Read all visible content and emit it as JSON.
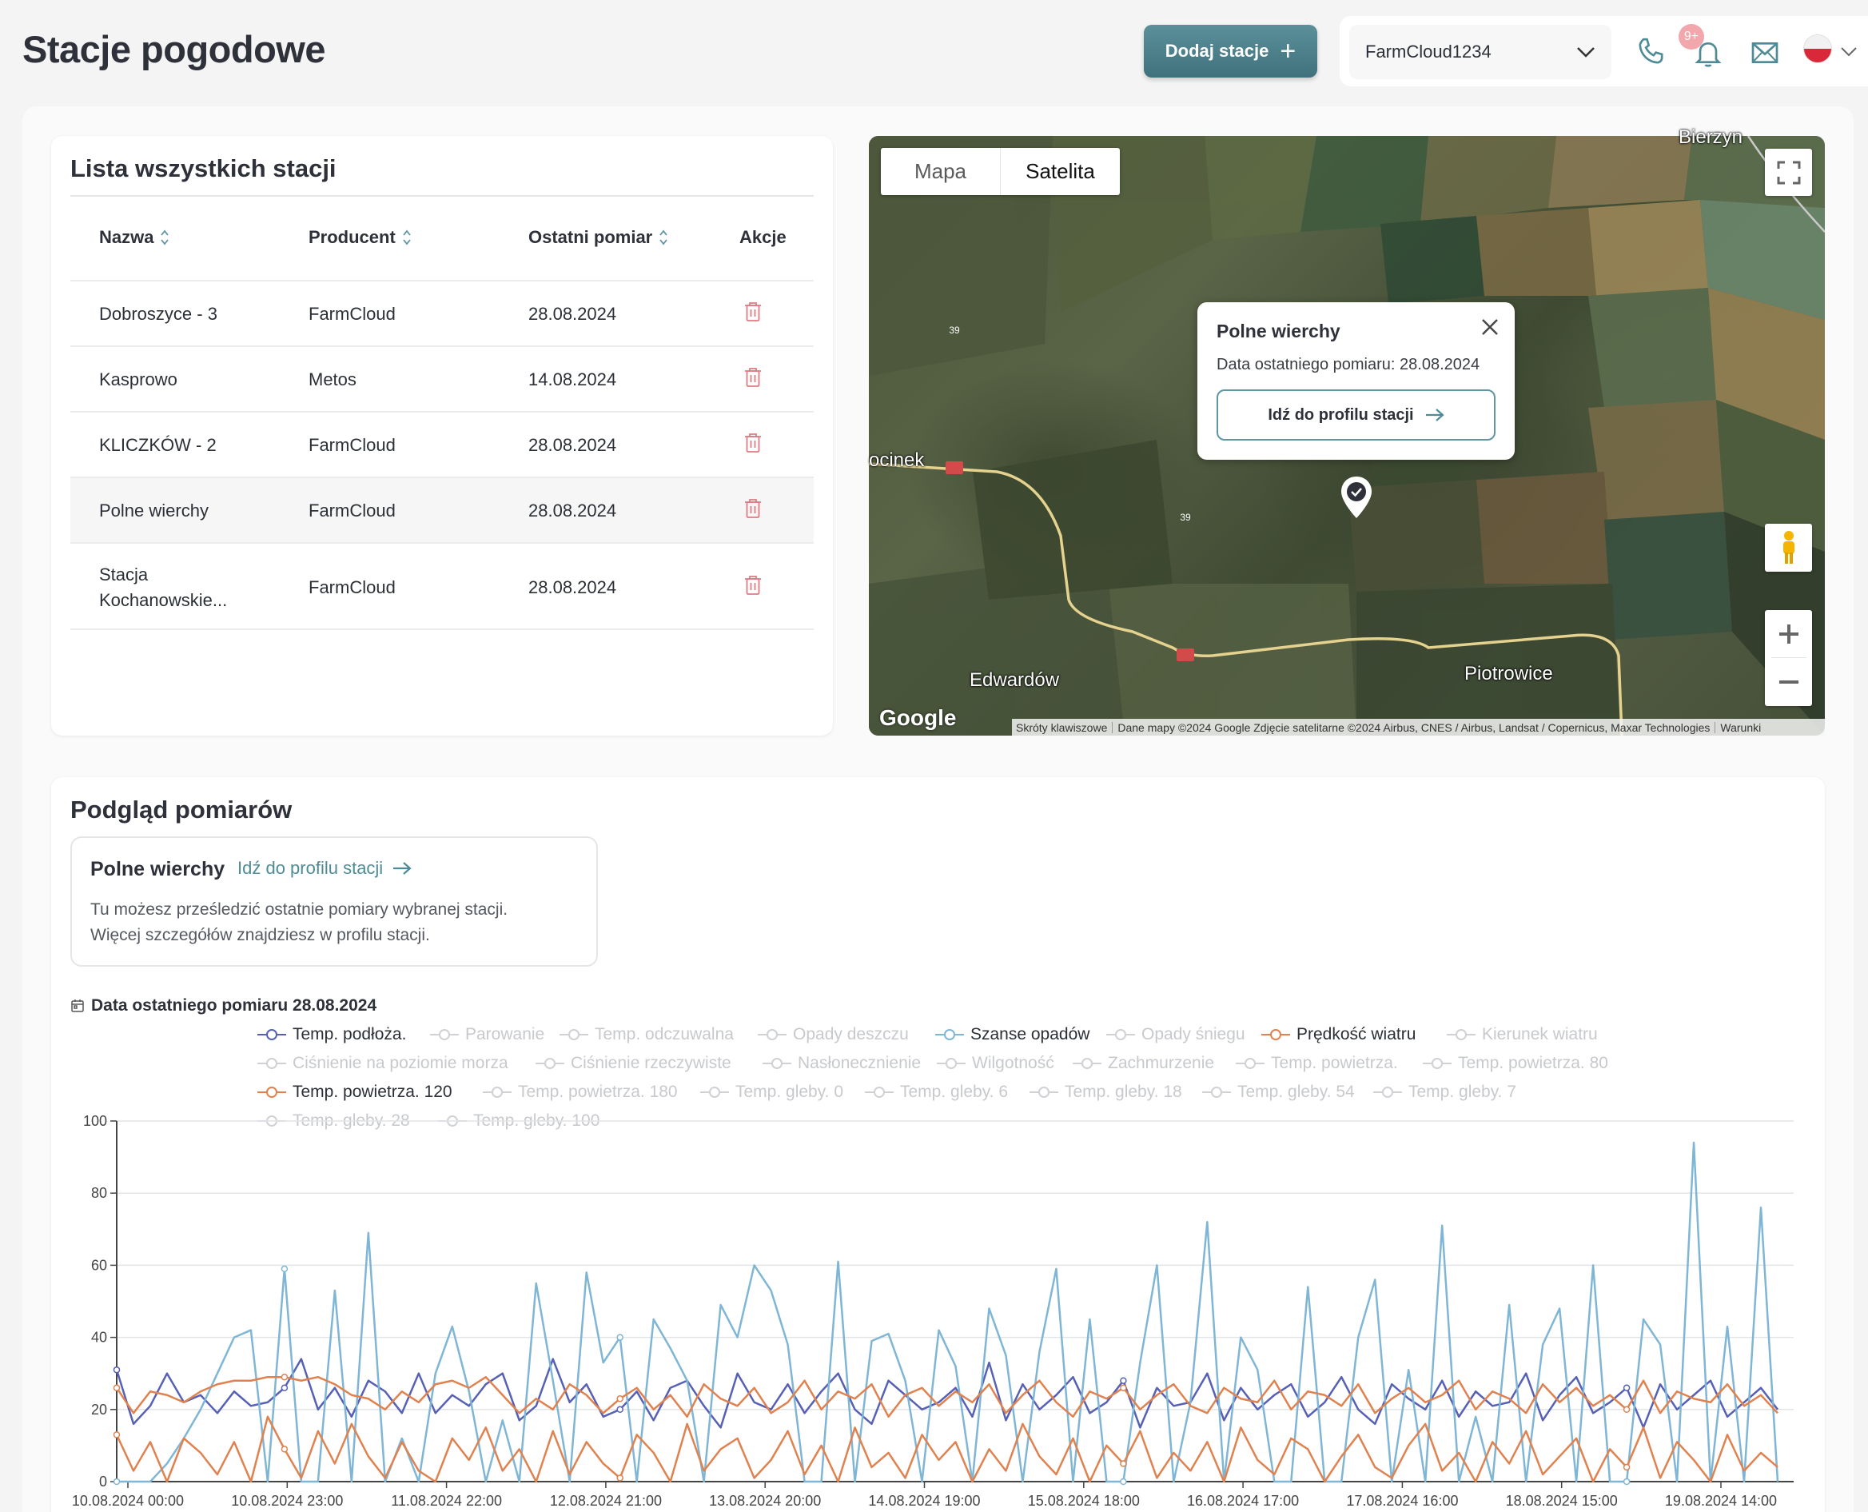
{
  "header": {
    "title": "Stacje pogodowe",
    "add_button": "Dodaj stacje",
    "account": "FarmCloud1234",
    "notifications_badge": "9+",
    "icons": [
      "phone-icon",
      "bell-icon",
      "mail-icon",
      "flag-pl-icon"
    ]
  },
  "stations": {
    "title": "Lista wszystkich stacji",
    "columns": [
      "Nazwa",
      "Producent",
      "Ostatni pomiar",
      "Akcje"
    ],
    "rows": [
      {
        "name": "Dobroszyce - 3",
        "producer": "FarmCloud",
        "last": "28.08.2024"
      },
      {
        "name": "Kasprowo",
        "producer": "Metos",
        "last": "14.08.2024"
      },
      {
        "name": "KLICZKÓW - 2",
        "producer": "FarmCloud",
        "last": "28.08.2024"
      },
      {
        "name": "Polne wierchy",
        "producer": "FarmCloud",
        "last": "28.08.2024"
      },
      {
        "name": "Stacja Kochanowskie...",
        "name_line1": "Stacja",
        "name_line2": "Kochanowskie...",
        "producer": "FarmCloud",
        "last": "28.08.2024"
      }
    ]
  },
  "map": {
    "tab_map": "Mapa",
    "tab_satellite": "Satelita",
    "active_tab": "Satelita",
    "popup": {
      "title": "Polne wierchy",
      "subtitle": "Data ostatniego pomiaru: 28.08.2024",
      "button": "Idź do profilu stacji"
    },
    "labels": {
      "top_right": "Bierzyn",
      "left": "ocinek",
      "bottom_left": "Edwardów",
      "bottom_right": "Piotrowice",
      "road": "39"
    },
    "google": "Google",
    "attribution": {
      "shortcuts": "Skróty klawiszowe",
      "data": "Dane mapy ©2024 Google Zdjęcie satelitarne ©2024 Airbus, CNES / Airbus, Landsat / Copernicus, Maxar Technologies",
      "terms": "Warunki"
    }
  },
  "measurements": {
    "title": "Podgląd pomiarów",
    "station": "Polne wierchy",
    "profile_link": "Idź do profilu stacji",
    "info": "Tu możesz prześledzić ostatnie pomiary wybranej stacji. Więcej szczegółów znajdziesz w profilu stacji.",
    "info_line1": "Tu możesz prześledzić ostatnie pomiary wybranej stacji.",
    "info_line2": "Więcej szczegółów znajdziesz w profilu stacji.",
    "last_date": "Data ostatniego pomiaru 28.08.2024"
  },
  "chart_data": {
    "type": "line",
    "ylim": [
      0,
      100
    ],
    "yticks": [
      0,
      20,
      40,
      60,
      80,
      100
    ],
    "x_ticks": [
      "10.08.2024 00:00",
      "10.08.2024 23:00",
      "11.08.2024 22:00",
      "12.08.2024 21:00",
      "13.08.2024 20:00",
      "14.08.2024 19:00",
      "15.08.2024 18:00",
      "16.08.2024 17:00",
      "17.08.2024 16:00",
      "18.08.2024 15:00",
      "19.08.2024 14:00"
    ],
    "legend": [
      {
        "name": "Temp. podłoża.",
        "active": true,
        "color": "#5660b5"
      },
      {
        "name": "Parowanie",
        "active": false
      },
      {
        "name": "Temp. odczuwalna",
        "active": false
      },
      {
        "name": "Opady deszczu",
        "active": false
      },
      {
        "name": "Szanse opadów",
        "active": true,
        "color": "#7fb6d6"
      },
      {
        "name": "Opady śniegu",
        "active": false
      },
      {
        "name": "Prędkość wiatru",
        "active": true,
        "color": "#e0824f"
      },
      {
        "name": "Kierunek wiatru",
        "active": false
      },
      {
        "name": "Ciśnienie na poziomie morza",
        "active": false
      },
      {
        "name": "Ciśnienie rzeczywiste",
        "active": false
      },
      {
        "name": "Nasłonecznienie",
        "active": false
      },
      {
        "name": "Wilgotność",
        "active": false
      },
      {
        "name": "Zachmurzenie",
        "active": false
      },
      {
        "name": "Temp. powietrza.",
        "active": false
      },
      {
        "name": "Temp. powietrza. 80",
        "active": false
      },
      {
        "name": "Temp. powietrza. 120",
        "active": true,
        "color": "#e0824f"
      },
      {
        "name": "Temp. powietrza. 180",
        "active": false
      },
      {
        "name": "Temp. gleby. 0",
        "active": false
      },
      {
        "name": "Temp. gleby. 6",
        "active": false
      },
      {
        "name": "Temp. gleby. 18",
        "active": false
      },
      {
        "name": "Temp. gleby. 54",
        "active": false
      },
      {
        "name": "Temp. gleby. 7",
        "active": false
      },
      {
        "name": "Temp. gleby. 28",
        "active": false
      },
      {
        "name": "Temp. gleby. 100",
        "active": false
      }
    ],
    "series": [
      {
        "name": "Temp. podłoża.",
        "color": "#5660b5",
        "values": [
          31,
          16,
          21,
          30,
          22,
          24,
          19,
          25,
          21,
          22,
          26,
          34,
          20,
          26,
          18,
          28,
          25,
          19,
          30,
          19,
          24,
          21,
          27,
          30,
          17,
          21,
          34,
          22,
          27,
          18,
          20,
          25,
          17,
          26,
          28,
          21,
          15,
          30,
          22,
          20,
          27,
          19,
          25,
          30,
          20,
          16,
          28,
          24,
          20,
          22,
          26,
          18,
          33,
          17,
          27,
          20,
          24,
          29,
          19,
          22,
          28,
          15,
          26,
          21,
          22,
          30,
          17,
          26,
          20,
          24,
          27,
          18,
          22,
          29,
          20,
          16,
          27,
          23,
          20,
          28,
          18,
          25,
          21,
          22,
          30,
          17,
          24,
          29,
          19,
          22,
          26,
          15,
          27,
          20,
          24,
          28,
          18,
          22,
          26,
          20
        ]
      },
      {
        "name": "Szanse opadów",
        "color": "#7fb6d6",
        "values": [
          0,
          0,
          0,
          5,
          12,
          20,
          30,
          40,
          42,
          0,
          59,
          0,
          0,
          53,
          0,
          69,
          0,
          12,
          0,
          30,
          43,
          25,
          0,
          17,
          0,
          55,
          28,
          0,
          58,
          33,
          40,
          0,
          45,
          37,
          28,
          0,
          49,
          40,
          60,
          53,
          38,
          0,
          0,
          61,
          0,
          39,
          41,
          28,
          0,
          42,
          32,
          0,
          48,
          35,
          0,
          36,
          59,
          0,
          45,
          0,
          0,
          33,
          60,
          0,
          22,
          72,
          0,
          40,
          31,
          0,
          0,
          54,
          0,
          0,
          40,
          56,
          0,
          31,
          0,
          71,
          0,
          18,
          0,
          49,
          0,
          38,
          48,
          0,
          60,
          0,
          0,
          45,
          38,
          0,
          94,
          0,
          43,
          0,
          76,
          0
        ]
      },
      {
        "name": "Prędkość wiatru",
        "color": "#e0824f",
        "values": [
          26,
          19,
          25,
          24,
          22,
          25,
          27,
          28,
          28,
          29,
          29,
          28,
          29,
          27,
          24,
          23,
          20,
          25,
          22,
          27,
          28,
          26,
          29,
          24,
          19,
          23,
          20,
          27,
          24,
          19,
          23,
          26,
          20,
          24,
          18,
          27,
          23,
          21,
          26,
          19,
          22,
          28,
          20,
          25,
          23,
          27,
          18,
          24,
          26,
          21,
          25,
          22,
          27,
          19,
          24,
          28,
          22,
          18,
          25,
          23,
          26,
          20,
          24,
          27,
          21,
          19,
          26,
          23,
          22,
          28,
          20,
          25,
          24,
          21,
          27,
          19,
          23,
          26,
          22,
          24,
          28,
          20,
          25,
          23,
          19,
          27,
          22,
          26,
          21,
          24,
          20,
          28,
          19,
          25,
          23,
          22,
          27,
          21,
          24,
          19
        ]
      },
      {
        "name": "Temp. powietrza. 120",
        "color": "#e0824f",
        "values": [
          13,
          3,
          11,
          0,
          12,
          8,
          2,
          11,
          0,
          18,
          9,
          1,
          14,
          5,
          16,
          7,
          1,
          11,
          3,
          0,
          12,
          6,
          15,
          3,
          9,
          0,
          14,
          2,
          11,
          5,
          1,
          13,
          8,
          0,
          16,
          3,
          9,
          12,
          1,
          6,
          14,
          2,
          10,
          0,
          15,
          4,
          8,
          1,
          13,
          6,
          11,
          0,
          9,
          3,
          16,
          7,
          2,
          12,
          0,
          10,
          5,
          14,
          1,
          8,
          3,
          11,
          0,
          15,
          6,
          2,
          12,
          9,
          0,
          7,
          13,
          4,
          1,
          10,
          16,
          3,
          8,
          0,
          11,
          5,
          14,
          2,
          7,
          12,
          0,
          9,
          4,
          15,
          1,
          11,
          6,
          0,
          13,
          3,
          8,
          4
        ]
      }
    ]
  }
}
